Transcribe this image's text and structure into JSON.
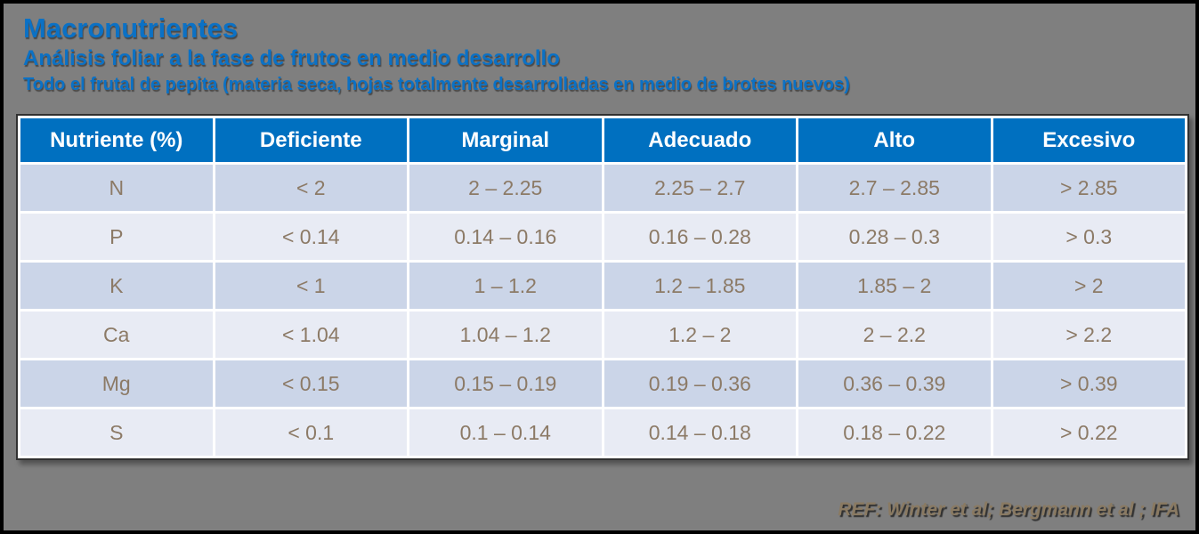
{
  "slide": {
    "title": "Macronutrientes",
    "subtitle": "Análisis foliar a la fase de frutos en medio desarrollo",
    "subtitle2": "Todo el frutal de pepita (materia seca, hojas totalmente desarrolladas en medio de brotes nuevos)",
    "reference": "REF: Winter et al; Bergmann et al ; IFA"
  },
  "table": {
    "headers": [
      "Nutriente (%)",
      "Deficiente",
      "Marginal",
      "Adecuado",
      "Alto",
      "Excesivo"
    ],
    "rows": [
      {
        "cells": [
          "N",
          "< 2",
          "2 – 2.25",
          "2.25 – 2.7",
          "2.7 – 2.85",
          "> 2.85"
        ]
      },
      {
        "cells": [
          "P",
          "< 0.14",
          "0.14 – 0.16",
          "0.16 – 0.28",
          "0.28 – 0.3",
          "> 0.3"
        ]
      },
      {
        "cells": [
          "K",
          "< 1",
          "1 – 1.2",
          "1.2 – 1.85",
          "1.85 – 2",
          "> 2"
        ]
      },
      {
        "cells": [
          "Ca",
          "< 1.04",
          "1.04 – 1.2",
          "1.2 – 2",
          "2 – 2.2",
          "> 2.2"
        ]
      },
      {
        "cells": [
          "Mg",
          "< 0.15",
          "0.15 – 0.19",
          "0.19 – 0.36",
          "0.36 – 0.39",
          "> 0.39"
        ]
      },
      {
        "cells": [
          "S",
          "< 0.1",
          "0.1 – 0.14",
          "0.14 – 0.18",
          "0.18 – 0.22",
          "> 0.22"
        ]
      }
    ]
  },
  "colors": {
    "slide_background": "#7F7F7F",
    "title_blue": "#0B71C5",
    "header_bg": "#0070C0",
    "header_text": "#FFFFFF",
    "row_odd_bg": "#CBD5E8",
    "row_even_bg": "#E8EBF4",
    "cell_text": "#8C7A66",
    "reference_text": "#8A7A62"
  },
  "chart_data": {
    "type": "table",
    "title": "Macronutrientes — Análisis foliar a la fase de frutos en medio desarrollo",
    "columns": [
      "Nutriente (%)",
      "Deficiente",
      "Marginal",
      "Adecuado",
      "Alto",
      "Excesivo"
    ],
    "rows": [
      [
        "N",
        "< 2",
        "2 – 2.25",
        "2.25 – 2.7",
        "2.7 – 2.85",
        "> 2.85"
      ],
      [
        "P",
        "< 0.14",
        "0.14 – 0.16",
        "0.16 – 0.28",
        "0.28 – 0.3",
        "> 0.3"
      ],
      [
        "K",
        "< 1",
        "1 – 1.2",
        "1.2 – 1.85",
        "1.85 – 2",
        "> 2"
      ],
      [
        "Ca",
        "< 1.04",
        "1.04 – 1.2",
        "1.2 – 2",
        "2 – 2.2",
        "> 2.2"
      ],
      [
        "Mg",
        "< 0.15",
        "0.15 – 0.19",
        "0.19 – 0.36",
        "0.36 – 0.39",
        "> 0.39"
      ],
      [
        "S",
        "< 0.1",
        "0.1 – 0.14",
        "0.14 – 0.18",
        "0.18 – 0.22",
        "> 0.22"
      ]
    ]
  }
}
